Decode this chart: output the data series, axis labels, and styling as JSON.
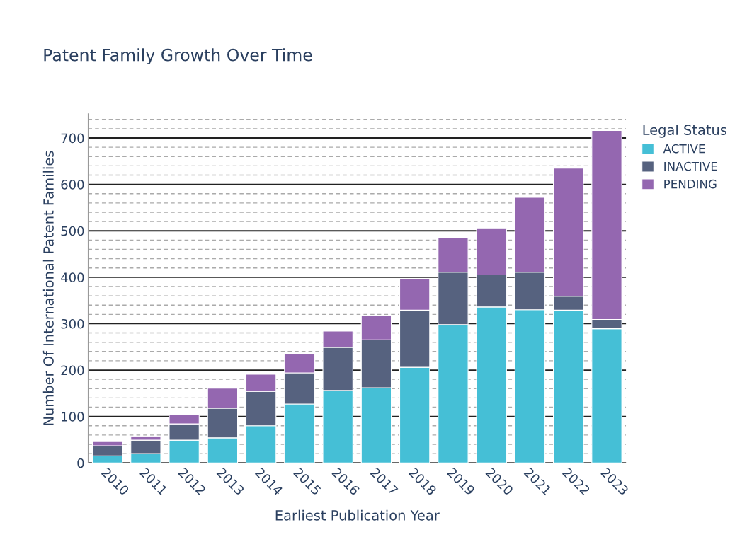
{
  "chart_data": {
    "type": "bar",
    "title": "Patent Family Growth Over Time",
    "xlabel": "Earliest Publication Year",
    "ylabel": "Number Of International Patent Families",
    "legend_title": "Legal Status",
    "categories": [
      "2010",
      "2011",
      "2012",
      "2013",
      "2014",
      "2015",
      "2016",
      "2017",
      "2018",
      "2019",
      "2020",
      "2021",
      "2022",
      "2023"
    ],
    "series": [
      {
        "name": "ACTIVE",
        "color": "#45bfd6",
        "values": [
          15,
          20,
          49,
          54,
          80,
          127,
          156,
          162,
          206,
          298,
          336,
          330,
          329,
          289
        ]
      },
      {
        "name": "INACTIVE",
        "color": "#56627f",
        "values": [
          22,
          29,
          35,
          64,
          74,
          67,
          93,
          103,
          123,
          113,
          69,
          81,
          30,
          20
        ]
      },
      {
        "name": "PENDING",
        "color": "#9467b0",
        "values": [
          9,
          8,
          21,
          43,
          37,
          41,
          35,
          52,
          67,
          75,
          101,
          161,
          276,
          407
        ]
      }
    ],
    "stacked": true,
    "ylim": [
      0,
      752
    ],
    "yticks": [
      0,
      100,
      200,
      300,
      400,
      500,
      600,
      700
    ],
    "grid": "y",
    "legend": "top right"
  }
}
